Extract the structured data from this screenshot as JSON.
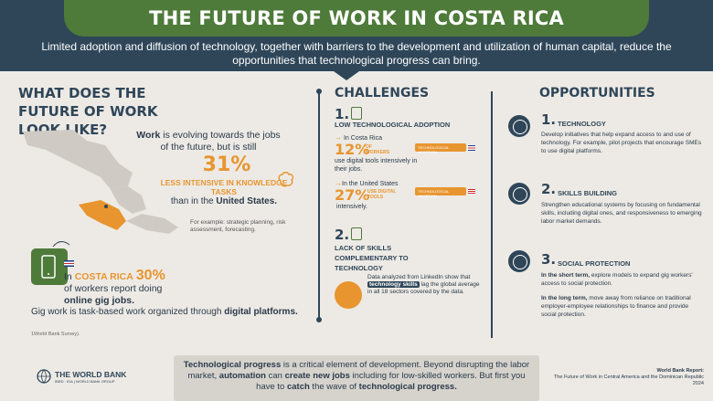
{
  "header": {
    "title": "THE FUTURE OF WORK IN COSTA RICA",
    "subtitle": "Limited adoption and diffusion of technology, together with barriers to the development and utilization of human capital, reduce the opportunities that technological progress can bring."
  },
  "left": {
    "title": "WHAT DOES THE FUTURE OF WORK LOOK LIKE?",
    "work_pre": "Work",
    "work_text": " is evolving towards the jobs of the future, but is still",
    "big_pct": "31%",
    "less_text": "LESS INTENSIVE IN KNOWLEDGE TASKS",
    "than_text": "than in the",
    "than_bold": "United States.",
    "example": "For example: strategic planning, risk assessment, forecasting.",
    "cr_label": "In",
    "cr_country": "COSTA RICA",
    "cr_pct": "30%",
    "cr_text": "of workers report doing",
    "cr_bold": "online gig jobs.",
    "gig_text": "Gig work is task-based work organized through",
    "gig_bold": "digital platforms.",
    "source": "1World Bank Survey)."
  },
  "challenges": {
    "title": "CHALLENGES",
    "c1_num": "1.",
    "c1_head": "LOW TECHNOLOGICAL ADOPTION",
    "cr_in": "In Costa Rica",
    "cr_pct": "12%",
    "cr_of": "OF WORKERS",
    "cr_use": "use digital tools intensively in their jobs.",
    "cr_tag": "TECHNOLOGICAL ADOPTION",
    "us_in": "In the United States",
    "us_pct": "27%",
    "us_lbl": "USE DIGITAL TOOLS",
    "us_use": "intensively.",
    "us_tag": "TECHNOLOGICAL ADOPTION",
    "c2_num": "2.",
    "c2_head": "LACK OF SKILLS COMPLEMENTARY TO TECHNOLOGY",
    "li_pre": "Data analyzed from LinkedIn show that",
    "li_bold": "technology skills",
    "li_post": "lag the global average in all 18 sectors covered by the data."
  },
  "opportunities": {
    "title": "OPPORTUNITIES",
    "o1_num": "1.",
    "o1_head": "TECHNOLOGY",
    "o1_body": "Develop initiatives that help expand access to and use of technology. For example, pilot projects that encourage SMEs to use digital platforms.",
    "o2_num": "2.",
    "o2_head": "SKILLS BUILDING",
    "o2_body": "Strengthen educational systems by focusing on fundamental skills, including digital ones, and responsiveness to emerging labor market demands.",
    "o3_num": "3.",
    "o3_head": "SOCIAL PROTECTION",
    "o3_short_b": "In the short term,",
    "o3_short": " explore models to expand gig workers' access to social protection.",
    "o3_long_b": "In the long term,",
    "o3_long": " move away from reliance on traditional employer-employee relationships to finance and provide social protection."
  },
  "bottom": {
    "b1": "Technological progress",
    "t1": " is a critical element of development. Beyond disrupting the labor market, ",
    "b2": "automation",
    "t2": " can ",
    "b3": "create new jobs",
    "t3": " including for low-skilled workers. But first you have to ",
    "b4": "catch",
    "t4": " the wave of ",
    "b5": "technological progress."
  },
  "logo": {
    "name": "THE WORLD BANK",
    "sub": "IBRD · IDA | WORLD BANK GROUP"
  },
  "report": {
    "label": "World Bank Report:",
    "text": "The Future of Work in Central America and the Dominican Republic 2024"
  },
  "colors": {
    "navy": "#2f4659",
    "green": "#4e7a3a",
    "orange": "#e8952f",
    "bg": "#edeae5"
  }
}
